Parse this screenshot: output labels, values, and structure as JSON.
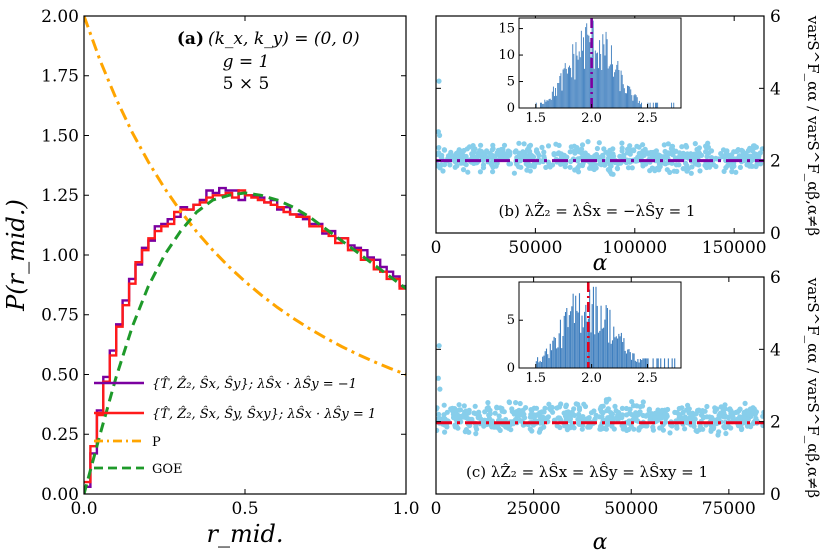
{
  "colors": {
    "purple": "#7b00a0",
    "red": "#ff1a1a",
    "orange": "#ffa500",
    "green": "#1e9a2a",
    "dots": "#87ceeb",
    "bars": "#3f7fbf",
    "purple_dashdot": "#7b00a0",
    "red_dashdot": "#e8001c"
  },
  "chart_data": [
    {
      "id": "a",
      "type": "line",
      "annotation": {
        "tag": "(a)",
        "momentum": "(k_x, k_y) = (0, 0)",
        "coupling": "g = 1",
        "size": "5 × 5"
      },
      "xlabel": "r_mid.",
      "ylabel": "P(r_mid.)",
      "xlim": [
        0.0,
        1.0
      ],
      "ylim": [
        0.0,
        2.0
      ],
      "xticks": [
        "0.0",
        "0.5",
        "1.0"
      ],
      "yticks": [
        "0.00",
        "0.25",
        "0.50",
        "0.75",
        "1.00",
        "1.25",
        "1.50",
        "1.75",
        "2.00"
      ],
      "series": [
        {
          "name": "{T̂, Ẑ₂, Ŝx, Ŝy}; λŜx · λŜy = −1",
          "style": "step",
          "x": [
            0.0,
            0.02,
            0.04,
            0.06,
            0.08,
            0.1,
            0.12,
            0.14,
            0.16,
            0.18,
            0.2,
            0.22,
            0.24,
            0.26,
            0.28,
            0.3,
            0.32,
            0.34,
            0.36,
            0.38,
            0.4,
            0.42,
            0.44,
            0.46,
            0.48,
            0.5,
            0.52,
            0.54,
            0.56,
            0.58,
            0.6,
            0.62,
            0.64,
            0.66,
            0.68,
            0.7,
            0.72,
            0.74,
            0.76,
            0.78,
            0.8,
            0.82,
            0.84,
            0.86,
            0.88,
            0.9,
            0.92,
            0.94,
            0.96,
            0.98
          ],
          "y": [
            0.03,
            0.17,
            0.35,
            0.49,
            0.6,
            0.71,
            0.81,
            0.9,
            0.96,
            1.03,
            1.06,
            1.12,
            1.13,
            1.15,
            1.16,
            1.2,
            1.19,
            1.21,
            1.23,
            1.27,
            1.26,
            1.28,
            1.27,
            1.27,
            1.23,
            1.25,
            1.25,
            1.24,
            1.22,
            1.23,
            1.19,
            1.2,
            1.17,
            1.17,
            1.15,
            1.13,
            1.13,
            1.09,
            1.1,
            1.07,
            1.07,
            1.04,
            1.03,
            1.02,
            0.99,
            0.98,
            0.95,
            0.93,
            0.91,
            0.87
          ]
        },
        {
          "name": "{T̂, Ẑ₂, Ŝx, Ŝy, Ŝxy}; λŜx · λŜy = 1",
          "style": "step",
          "x": [
            0.0,
            0.02,
            0.04,
            0.06,
            0.08,
            0.1,
            0.12,
            0.14,
            0.16,
            0.18,
            0.2,
            0.22,
            0.24,
            0.26,
            0.28,
            0.3,
            0.32,
            0.34,
            0.36,
            0.38,
            0.4,
            0.42,
            0.44,
            0.46,
            0.48,
            0.5,
            0.52,
            0.54,
            0.56,
            0.58,
            0.6,
            0.62,
            0.64,
            0.66,
            0.68,
            0.7,
            0.72,
            0.74,
            0.76,
            0.78,
            0.8,
            0.82,
            0.84,
            0.86,
            0.88,
            0.9,
            0.92,
            0.94,
            0.96,
            0.98
          ],
          "y": [
            0.05,
            0.2,
            0.33,
            0.47,
            0.58,
            0.7,
            0.79,
            0.88,
            0.97,
            1.02,
            1.07,
            1.1,
            1.12,
            1.13,
            1.18,
            1.19,
            1.19,
            1.21,
            1.22,
            1.24,
            1.25,
            1.25,
            1.26,
            1.24,
            1.27,
            1.25,
            1.24,
            1.23,
            1.22,
            1.21,
            1.2,
            1.18,
            1.17,
            1.16,
            1.16,
            1.12,
            1.12,
            1.1,
            1.08,
            1.05,
            1.07,
            1.02,
            1.02,
            0.98,
            0.98,
            0.94,
            0.93,
            0.9,
            0.9,
            0.86
          ]
        },
        {
          "name": "P",
          "style": "dashdot",
          "x": [
            0.0,
            0.05,
            0.1,
            0.15,
            0.2,
            0.25,
            0.3,
            0.35,
            0.4,
            0.45,
            0.5,
            0.55,
            0.6,
            0.65,
            0.7,
            0.75,
            0.8,
            0.85,
            0.9,
            0.95,
            1.0
          ],
          "y": [
            2.0,
            1.814,
            1.653,
            1.512,
            1.389,
            1.28,
            1.183,
            1.097,
            1.02,
            0.951,
            0.889,
            0.833,
            0.781,
            0.735,
            0.692,
            0.653,
            0.617,
            0.584,
            0.554,
            0.526,
            0.5
          ]
        },
        {
          "name": "GOE",
          "style": "dashed",
          "x": [
            0.0,
            0.05,
            0.1,
            0.15,
            0.2,
            0.25,
            0.3,
            0.35,
            0.4,
            0.45,
            0.5,
            0.55,
            0.6,
            0.65,
            0.7,
            0.75,
            0.8,
            0.85,
            0.9,
            0.95,
            1.0
          ],
          "y": [
            0.0,
            0.25,
            0.49,
            0.7,
            0.87,
            1.0,
            1.1,
            1.18,
            1.23,
            1.25,
            1.26,
            1.25,
            1.23,
            1.2,
            1.16,
            1.11,
            1.06,
            1.01,
            0.96,
            0.91,
            0.86
          ]
        }
      ]
    },
    {
      "id": "b",
      "type": "scatter",
      "annotation": "(b) λẐ₂ = λŜx = −λŜy = 1",
      "xlabel": "α",
      "ylabel": "varS^F_αα / varS^F_αβ,α≠β",
      "xlim": [
        0,
        165000
      ],
      "ylim": [
        0,
        6
      ],
      "xticks": [
        "0",
        "50000",
        "100000",
        "150000"
      ],
      "yticks": [
        "0",
        "2",
        "4",
        "6"
      ],
      "mean_line": 2.0,
      "scatter_band": [
        1.55,
        2.6
      ],
      "outliers": [
        {
          "x": 1500,
          "y": 4.2
        },
        {
          "x": 1200,
          "y": 2.8
        },
        {
          "x": 1800,
          "y": 2.7
        }
      ],
      "inset": {
        "type": "histogram",
        "xlim": [
          1.35,
          2.8
        ],
        "ylim": [
          0,
          17
        ],
        "xticks": [
          "1.5",
          "2.0",
          "2.5"
        ],
        "yticks": [
          "0",
          "5",
          "10",
          "15"
        ],
        "mean_line": 2.0,
        "center": 2.0,
        "spread": 0.2,
        "peak": 15
      }
    },
    {
      "id": "c",
      "type": "scatter",
      "annotation": "(c) λẐ₂ = λŜx = λŜy = λŜxy = 1",
      "xlabel": "α",
      "ylabel": "varS^F_αα / varS^F_αβ,α≠β",
      "xlim": [
        0,
        84000
      ],
      "ylim": [
        0,
        6
      ],
      "xticks": [
        "0",
        "25000",
        "50000",
        "75000"
      ],
      "yticks": [
        "0",
        "2",
        "4",
        "6"
      ],
      "mean_line": 1.97,
      "scatter_band": [
        1.5,
        2.7
      ],
      "outliers": [
        {
          "x": 800,
          "y": 4.1
        },
        {
          "x": 600,
          "y": 3.2
        },
        {
          "x": 1000,
          "y": 2.9
        }
      ],
      "inset": {
        "type": "histogram",
        "xlim": [
          1.35,
          2.8
        ],
        "ylim": [
          0,
          9
        ],
        "xticks": [
          "1.5",
          "2.0",
          "2.5"
        ],
        "yticks": [
          "0",
          "5"
        ],
        "mean_line": 1.97,
        "center": 1.97,
        "spread": 0.22,
        "peak": 8
      }
    }
  ]
}
